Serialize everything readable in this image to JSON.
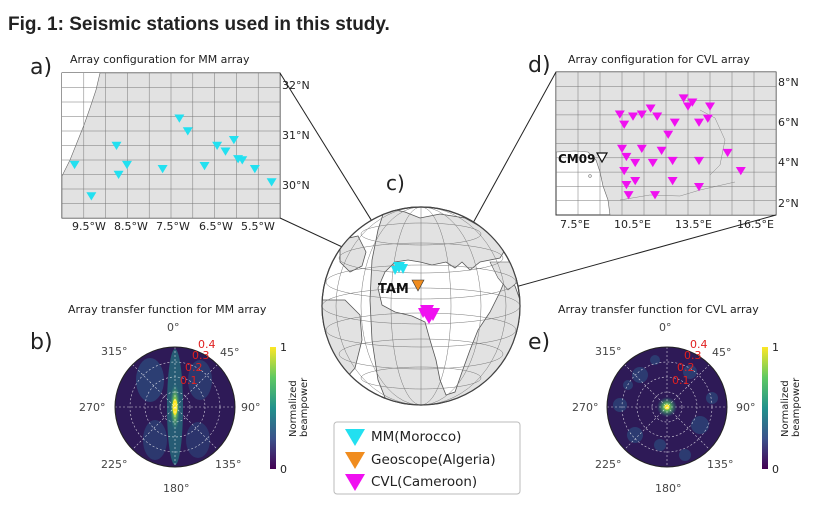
{
  "figure": {
    "title": "Fig. 1: Seismic stations used in this study.",
    "colors": {
      "mm": "#22e0f0",
      "geoscope": "#f08c1e",
      "cvl": "#f010f0",
      "land": "#e2e2e2",
      "polar_bg": "#2e1a57",
      "radius_label": "#e02020"
    }
  },
  "panel_a": {
    "letter": "a)",
    "title": "Array configuration for MM array",
    "xticks": [
      "9.5°W",
      "8.5°W",
      "7.5°W",
      "6.5°W",
      "5.5°W"
    ],
    "yticks": [
      "32°N",
      "31°N",
      "30°N"
    ],
    "stations_lonlat": [
      [
        -9.9,
        30.62
      ],
      [
        -9.5,
        30.08
      ],
      [
        -8.9,
        30.95
      ],
      [
        -8.85,
        30.45
      ],
      [
        -8.65,
        30.62
      ],
      [
        -7.8,
        30.55
      ],
      [
        -7.4,
        31.42
      ],
      [
        -7.2,
        31.2
      ],
      [
        -6.8,
        30.6
      ],
      [
        -6.5,
        30.95
      ],
      [
        -6.3,
        30.85
      ],
      [
        -6.1,
        31.05
      ],
      [
        -6.0,
        30.72
      ],
      [
        -5.9,
        30.7
      ],
      [
        -5.6,
        30.55
      ],
      [
        -5.2,
        30.32
      ]
    ]
  },
  "panel_b": {
    "letter": "b)",
    "title": "Array transfer function for MM array",
    "angles": [
      "0°",
      "45°",
      "90°",
      "135°",
      "180°",
      "225°",
      "270°",
      "315°"
    ],
    "radius_labels": [
      "0.4",
      "0.3",
      "0.2",
      "0.1"
    ],
    "colorbar": {
      "label_line1": "Normalized",
      "label_line2": "beampower",
      "max": "1",
      "min": "0"
    }
  },
  "panel_c": {
    "letter": "c)",
    "station_label": "TAM",
    "legend": [
      {
        "label": "MM(Morocco)",
        "color": "#22e0f0"
      },
      {
        "label": "Geoscope(Algeria)",
        "color": "#f08c1e"
      },
      {
        "label": "CVL(Cameroon)",
        "color": "#f010f0"
      }
    ]
  },
  "panel_d": {
    "letter": "d)",
    "title": "Array configuration for CVL array",
    "xticks": [
      "7.5°E",
      "10.5°E",
      "13.5°E",
      "16.5°E"
    ],
    "yticks": [
      "8°N",
      "6°N",
      "4°N",
      "2°N"
    ],
    "highlight_station": "CM09",
    "stations_lonlat": [
      [
        9.9,
        6.4
      ],
      [
        10.1,
        5.9
      ],
      [
        10.5,
        6.3
      ],
      [
        10.9,
        6.4
      ],
      [
        11.3,
        6.7
      ],
      [
        11.6,
        6.3
      ],
      [
        12.1,
        5.4
      ],
      [
        12.4,
        6.0
      ],
      [
        13.0,
        6.8
      ],
      [
        13.5,
        6.0
      ],
      [
        13.9,
        6.2
      ],
      [
        14.0,
        6.8
      ],
      [
        12.8,
        7.2
      ],
      [
        13.2,
        7.0
      ],
      [
        10.0,
        4.7
      ],
      [
        10.2,
        4.3
      ],
      [
        10.6,
        4.0
      ],
      [
        10.9,
        4.7
      ],
      [
        11.4,
        4.0
      ],
      [
        11.8,
        4.6
      ],
      [
        12.3,
        4.1
      ],
      [
        13.5,
        4.1
      ],
      [
        14.8,
        4.5
      ],
      [
        15.4,
        3.6
      ],
      [
        10.1,
        3.6
      ],
      [
        10.6,
        3.1
      ],
      [
        11.5,
        2.4
      ],
      [
        12.3,
        3.1
      ],
      [
        13.5,
        2.8
      ],
      [
        10.3,
        2.4
      ],
      [
        10.2,
        2.9
      ]
    ]
  },
  "panel_e": {
    "letter": "e)",
    "title": "Array transfer function for CVL array",
    "angles": [
      "0°",
      "45°",
      "90°",
      "135°",
      "180°",
      "225°",
      "270°",
      "315°"
    ],
    "radius_labels": [
      "0.4",
      "0.3",
      "0.2",
      "0.1"
    ],
    "colorbar": {
      "label_line1": "Normalized",
      "label_line2": "beampower",
      "max": "1",
      "min": "0"
    }
  }
}
